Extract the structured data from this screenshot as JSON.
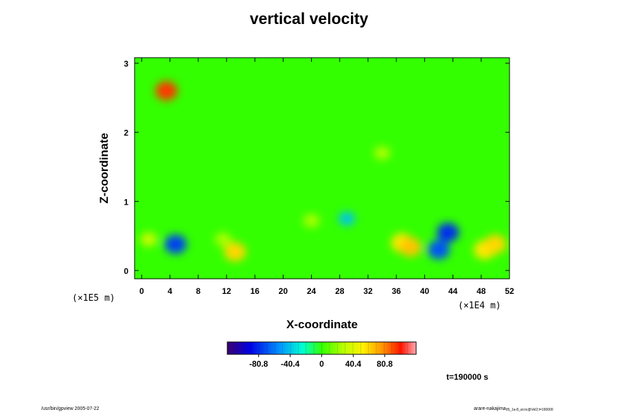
{
  "chart_data": {
    "type": "heatmap",
    "title": "vertical velocity",
    "xlabel": "X-coordinate",
    "ylabel": "Z-coordinate",
    "x_scale_note": "(×1E4 m)",
    "y_scale_note": "(×1E5 m)",
    "x_ticks": [
      "0",
      "4",
      "8",
      "12",
      "16",
      "20",
      "24",
      "28",
      "32",
      "36",
      "40",
      "44",
      "48",
      "52"
    ],
    "y_ticks": [
      "0",
      "1",
      "2",
      "3"
    ],
    "xlim": [
      -1,
      52
    ],
    "ylim": [
      -0.12,
      3.08
    ],
    "colorbar": {
      "ticks": [
        "-80.8",
        "-40.4",
        "0",
        "40.4",
        "80.8"
      ],
      "range": [
        -121,
        121
      ]
    },
    "time_label": "t=190000 s",
    "background_value": 0,
    "features": [
      {
        "x": 4.8,
        "z": 0.38,
        "value": -75
      },
      {
        "x": 1.0,
        "z": 0.45,
        "value": 35
      },
      {
        "x": 13.2,
        "z": 0.27,
        "value": 60
      },
      {
        "x": 11.5,
        "z": 0.45,
        "value": 25
      },
      {
        "x": 24.0,
        "z": 0.72,
        "value": 25
      },
      {
        "x": 29.0,
        "z": 0.75,
        "value": -40
      },
      {
        "x": 36.8,
        "z": 0.4,
        "value": 55
      },
      {
        "x": 38.0,
        "z": 0.34,
        "value": 65
      },
      {
        "x": 42.0,
        "z": 0.3,
        "value": -70
      },
      {
        "x": 43.3,
        "z": 0.55,
        "value": -80
      },
      {
        "x": 48.5,
        "z": 0.3,
        "value": 55
      },
      {
        "x": 50.0,
        "z": 0.38,
        "value": 60
      },
      {
        "x": 34.0,
        "z": 1.7,
        "value": 25
      },
      {
        "x": 3.5,
        "z": 2.6,
        "value": 95
      }
    ]
  },
  "footer": {
    "left": "/usr/bin/gpview 2005-07-22",
    "right": "arare-nakajima",
    "right_small": "05_1a-8_al.nc@Vel2;t=190000"
  }
}
